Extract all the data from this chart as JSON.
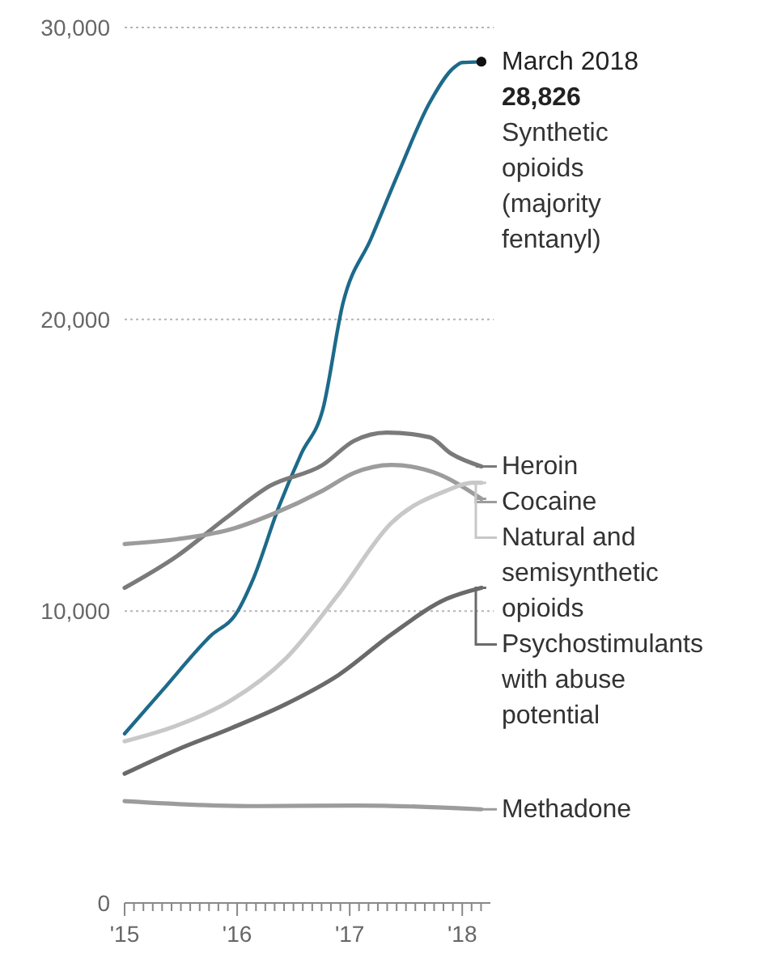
{
  "chart_data": {
    "type": "line",
    "xlim": [
      2015,
      2018.25
    ],
    "ylim": [
      0,
      30000
    ],
    "yticks": [
      {
        "value": 0,
        "label": "0"
      },
      {
        "value": 10000,
        "label": "10,000"
      },
      {
        "value": 20000,
        "label": "20,000"
      },
      {
        "value": 30000,
        "label": "30,000"
      }
    ],
    "xticks": [
      {
        "value": 2015,
        "label": "'15"
      },
      {
        "value": 2015.083,
        "label": null
      },
      {
        "value": 2015.167,
        "label": null
      },
      {
        "value": 2015.25,
        "label": null
      },
      {
        "value": 2015.333,
        "label": null
      },
      {
        "value": 2015.417,
        "label": null
      },
      {
        "value": 2015.5,
        "label": null
      },
      {
        "value": 2015.583,
        "label": null
      },
      {
        "value": 2015.667,
        "label": null
      },
      {
        "value": 2015.75,
        "label": null
      },
      {
        "value": 2015.833,
        "label": null
      },
      {
        "value": 2015.917,
        "label": null
      },
      {
        "value": 2016,
        "label": "'16"
      },
      {
        "value": 2016.083,
        "label": null
      },
      {
        "value": 2016.167,
        "label": null
      },
      {
        "value": 2016.25,
        "label": null
      },
      {
        "value": 2016.333,
        "label": null
      },
      {
        "value": 2016.417,
        "label": null
      },
      {
        "value": 2016.5,
        "label": null
      },
      {
        "value": 2016.583,
        "label": null
      },
      {
        "value": 2016.667,
        "label": null
      },
      {
        "value": 2016.75,
        "label": null
      },
      {
        "value": 2016.833,
        "label": null
      },
      {
        "value": 2016.917,
        "label": null
      },
      {
        "value": 2017,
        "label": "'17"
      },
      {
        "value": 2017.083,
        "label": null
      },
      {
        "value": 2017.167,
        "label": null
      },
      {
        "value": 2017.25,
        "label": null
      },
      {
        "value": 2017.333,
        "label": null
      },
      {
        "value": 2017.417,
        "label": null
      },
      {
        "value": 2017.5,
        "label": null
      },
      {
        "value": 2017.583,
        "label": null
      },
      {
        "value": 2017.667,
        "label": null
      },
      {
        "value": 2017.75,
        "label": null
      },
      {
        "value": 2017.833,
        "label": null
      },
      {
        "value": 2017.917,
        "label": null
      },
      {
        "value": 2018,
        "label": "'18"
      },
      {
        "value": 2018.083,
        "label": null
      },
      {
        "value": 2018.167,
        "label": null
      }
    ],
    "grid": "y",
    "legend": "right",
    "annotations": [
      {
        "text": "March 2018",
        "x": 2018.17,
        "y": 28826
      },
      {
        "text": "28,826",
        "x": 2018.17,
        "y": 28826
      }
    ],
    "series": [
      {
        "name": "Synthetic opioids (majority fentanyl)",
        "color": "#1d6a8a",
        "x": [
          2015,
          2015.33,
          2015.76,
          2016,
          2016.14,
          2016.37,
          2016.57,
          2016.76,
          2016.94,
          2017.19,
          2017.43,
          2017.71,
          2017.93,
          2018,
          2018.17
        ],
        "values": [
          5800,
          7260,
          9140,
          9970,
          11080,
          13570,
          15400,
          16900,
          20550,
          22770,
          24990,
          27420,
          28640,
          28800,
          28826
        ]
      },
      {
        "name": "Heroin",
        "color": "#7a7a7a",
        "x": [
          2015,
          2015.47,
          2015.9,
          2016.29,
          2016.76,
          2017.04,
          2017.33,
          2017.71,
          2017.9,
          2018.17
        ],
        "values": [
          10800,
          11900,
          13190,
          14290,
          15010,
          15840,
          16120,
          15960,
          15400,
          14960
        ]
      },
      {
        "name": "Cocaine",
        "color": "#9c9c9c",
        "x": [
          2015,
          2015.47,
          2015.94,
          2016.33,
          2016.76,
          2017.04,
          2017.37,
          2017.8,
          2018.17
        ],
        "values": [
          12300,
          12470,
          12800,
          13350,
          14130,
          14740,
          15010,
          14680,
          13850
        ]
      },
      {
        "name": "Natural and semisynthetic opioids",
        "color": "#c8c8c8",
        "x": [
          2015,
          2015.47,
          2015.94,
          2016.43,
          2016.9,
          2017.37,
          2017.86,
          2018.09,
          2018.17
        ],
        "values": [
          5540,
          6090,
          6930,
          8370,
          10580,
          13020,
          14130,
          14400,
          14400
        ]
      },
      {
        "name": "Psychostimulants with abuse potential",
        "color": "#6a6a6a",
        "x": [
          2015,
          2015.47,
          2015.94,
          2016.43,
          2016.9,
          2017.37,
          2017.86,
          2018.17
        ],
        "values": [
          4430,
          5260,
          5980,
          6810,
          7810,
          9200,
          10420,
          10800
        ]
      },
      {
        "name": "Methadone",
        "color": "#9c9c9c",
        "x": [
          2015,
          2016.1,
          2017.1,
          2018.17
        ],
        "values": [
          3490,
          3320,
          3340,
          3210
        ]
      }
    ]
  }
}
